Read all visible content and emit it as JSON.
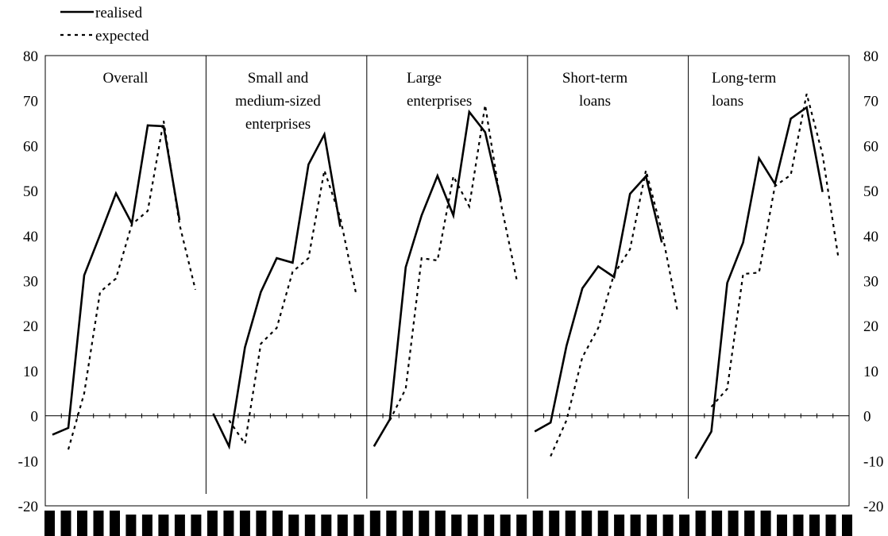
{
  "chart_data": {
    "type": "line",
    "legend": {
      "position": "top-left",
      "entries": [
        {
          "label": "realised",
          "style": "solid"
        },
        {
          "label": "expected",
          "style": "dotted"
        }
      ]
    },
    "ylim": [
      -20,
      80
    ],
    "y_ticks": [
      "80",
      "70",
      "60",
      "50",
      "40",
      "30",
      "20",
      "10",
      "0",
      "-10",
      "-20"
    ],
    "y_tick_values": [
      80,
      70,
      60,
      50,
      40,
      30,
      20,
      10,
      0,
      -10,
      -20
    ],
    "grid": false,
    "zero_line": true,
    "x_axis_note": "x-axis tick labels rendered as solid black blocks (unreadable)",
    "panels": [
      {
        "title": [
          "Overall"
        ],
        "series": [
          {
            "name": "realised",
            "values": [
              -4.2,
              -2.7,
              31.2,
              40.2,
              49.4,
              42.7,
              64.5,
              64.3,
              43.5,
              null
            ]
          },
          {
            "name": "expected",
            "values": [
              null,
              -7.5,
              5.0,
              27.5,
              30.5,
              42.5,
              45.5,
              65.5,
              42.5,
              28.0
            ]
          }
        ]
      },
      {
        "title": [
          "Small and",
          "medium-sized",
          "enterprises"
        ],
        "series": [
          {
            "name": "realised",
            "values": [
              0.5,
              -6.8,
              15.2,
              27.5,
              35.0,
              34.0,
              55.8,
              62.5,
              42.0,
              null
            ]
          },
          {
            "name": "expected",
            "values": [
              null,
              -1.0,
              -6.2,
              16.0,
              19.5,
              32.0,
              35.0,
              54.5,
              44.0,
              27.0
            ]
          }
        ]
      },
      {
        "title": [
          "Large",
          "enterprises"
        ],
        "series": [
          {
            "name": "realised",
            "values": [
              -6.8,
              -0.8,
              33.0,
              44.5,
              53.3,
              44.5,
              67.5,
              63.0,
              47.8,
              null
            ]
          },
          {
            "name": "expected",
            "values": [
              null,
              -1.0,
              6.0,
              35.0,
              34.5,
              53.2,
              46.5,
              69.0,
              47.0,
              30.0
            ]
          }
        ]
      },
      {
        "title": [
          "Short-term",
          "loans"
        ],
        "series": [
          {
            "name": "realised",
            "values": [
              -3.5,
              -1.5,
              15.5,
              28.3,
              33.2,
              30.8,
              49.3,
              53.2,
              38.5,
              null
            ]
          },
          {
            "name": "expected",
            "values": [
              null,
              -9.0,
              -1.0,
              13.0,
              19.5,
              31.5,
              37.0,
              54.5,
              41.0,
              23.0
            ]
          }
        ]
      },
      {
        "title": [
          "Long-term",
          "loans"
        ],
        "series": [
          {
            "name": "realised",
            "values": [
              -9.5,
              -3.5,
              29.5,
              38.5,
              57.2,
              51.5,
              66.0,
              68.5,
              49.7,
              null
            ]
          },
          {
            "name": "expected",
            "values": [
              null,
              2.0,
              6.0,
              31.5,
              31.8,
              51.0,
              53.5,
              71.5,
              58.0,
              35.0
            ]
          }
        ]
      }
    ]
  }
}
